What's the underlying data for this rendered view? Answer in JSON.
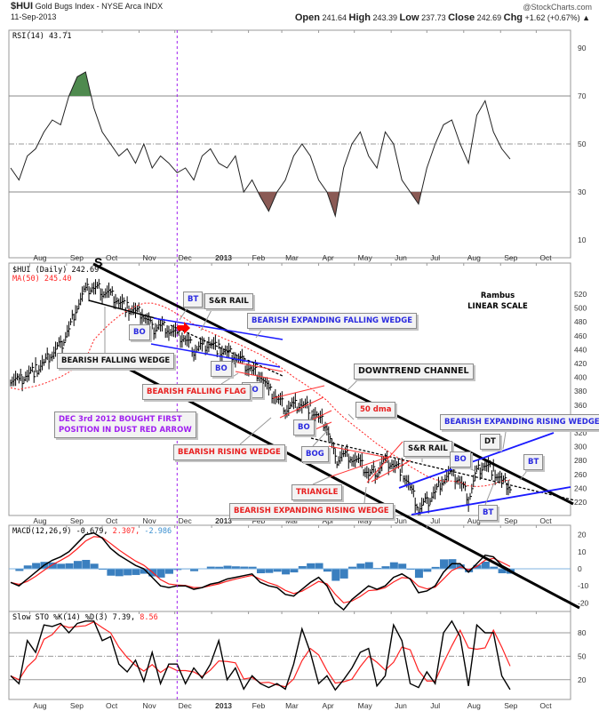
{
  "header": {
    "symbol": "$HUI",
    "name": "Gold Bugs Index - NYSE Arca INDX",
    "date": "11-Sep-2013",
    "credit": "@StockCharts.com",
    "open_label": "Open",
    "open": "241.64",
    "high_label": "High",
    "high": "243.39",
    "low_label": "Low",
    "low": "237.73",
    "close_label": "Close",
    "close": "242.69",
    "chg_label": "Chg",
    "chg": "+1.62 (+0.67%) ▲"
  },
  "legends": {
    "rsi": "RSI(14) 43.71",
    "price": "$HUI (Daily) 242.69",
    "ma": "MA(50) 245.40",
    "macd_name": "MACD(12,26,9) -0.679,",
    "macd_signal": " 2.307,",
    "macd_hist": " -2.986",
    "sto_name": "Slow STO %K(14) %D(3) 7.39,",
    "sto_d": " 8.56"
  },
  "annotations": {
    "s": "S",
    "rambus": "Rambus",
    "scale": "LINEAR SCALE",
    "bt1": "BT",
    "sr1": "S&R RAIL",
    "befw": "BEARISH EXPANDING FALLING WEDGE",
    "bo1": "BO",
    "bfw": "BEARISH FALLING WEDGE",
    "bo2": "BO",
    "bo3": "BO",
    "bff": "BEARISH FALLING FLAG",
    "dtc": "DOWNTREND CHANNEL",
    "dec1": "DEC 3rd 2012 BOUGHT FIRST",
    "dec2": "POSITION IN DUST RED ARROW",
    "bo4": "BO",
    "dma": "50 dma",
    "berw1": "BEARISH EXPANDING RISING WEDGE",
    "brw": "BEARISH RISING WEDGE",
    "bog": "BOG",
    "sr2": "S&R RAIL",
    "dt": "DT",
    "bo5": "BO",
    "bt2": "BT",
    "tri": "TRIANGLE",
    "bt3": "BT",
    "berw2": "BEARISH EXPANDING RISING WEDGE"
  },
  "colors": {
    "price": "#000000",
    "ma": "#ff2020",
    "macd_hist": "#3a7fbf",
    "signal": "#ff2020",
    "rsi_over": "#4f8a4f",
    "rsi_under": "#8a5a55",
    "marker": "#a020f0"
  },
  "chart_data": [
    {
      "type": "line",
      "panel": "RSI",
      "yticks": [
        90,
        70,
        50,
        30,
        10
      ],
      "ylim": [
        0,
        100
      ],
      "values": [
        40,
        35,
        45,
        48,
        55,
        60,
        58,
        70,
        78,
        80,
        65,
        55,
        50,
        45,
        48,
        42,
        50,
        40,
        45,
        42,
        38,
        40,
        35,
        45,
        48,
        42,
        40,
        45,
        30,
        35,
        28,
        22,
        30,
        35,
        45,
        50,
        45,
        35,
        30,
        20,
        40,
        50,
        55,
        45,
        40,
        55,
        50,
        35,
        30,
        25,
        40,
        50,
        58,
        60,
        50,
        42,
        62,
        68,
        55,
        48,
        43.71
      ]
    },
    {
      "type": "bar",
      "panel": "Price",
      "series_name": "$HUI (Daily)",
      "yticks": [
        520,
        500,
        480,
        460,
        440,
        420,
        400,
        380,
        360,
        340,
        320,
        300,
        280,
        260,
        240,
        220
      ],
      "dates": [
        "2012-07-16",
        "2012-07-23",
        "2012-07-30",
        "2012-08-06",
        "2012-08-13",
        "2012-08-20",
        "2012-08-27",
        "2012-09-03",
        "2012-09-10",
        "2012-09-17",
        "2012-09-24",
        "2012-10-01",
        "2012-10-08",
        "2012-10-15",
        "2012-10-22",
        "2012-10-29",
        "2012-11-05",
        "2012-11-12",
        "2012-11-19",
        "2012-11-26",
        "2012-12-03",
        "2012-12-10",
        "2012-12-17",
        "2012-12-24",
        "2012-12-31",
        "2013-01-07",
        "2013-01-14",
        "2013-01-21",
        "2013-01-28",
        "2013-02-04",
        "2013-02-11",
        "2013-02-18",
        "2013-02-25",
        "2013-03-04",
        "2013-03-11",
        "2013-03-18",
        "2013-03-25",
        "2013-04-01",
        "2013-04-08",
        "2013-04-15",
        "2013-04-22",
        "2013-04-29",
        "2013-05-06",
        "2013-05-13",
        "2013-05-20",
        "2013-05-27",
        "2013-06-03",
        "2013-06-10",
        "2013-06-17",
        "2013-06-24",
        "2013-07-01",
        "2013-07-08",
        "2013-07-15",
        "2013-07-22",
        "2013-07-29",
        "2013-08-05",
        "2013-08-12",
        "2013-08-19",
        "2013-08-26",
        "2013-09-02",
        "2013-09-09"
      ],
      "close": [
        400,
        395,
        405,
        410,
        420,
        435,
        445,
        470,
        505,
        525,
        530,
        525,
        520,
        510,
        500,
        495,
        490,
        470,
        475,
        470,
        460,
        455,
        440,
        445,
        450,
        440,
        435,
        430,
        420,
        410,
        405,
        380,
        370,
        355,
        360,
        362,
        355,
        340,
        330,
        280,
        290,
        285,
        275,
        260,
        265,
        280,
        275,
        265,
        240,
        210,
        220,
        235,
        255,
        260,
        250,
        225,
        265,
        275,
        265,
        250,
        242.69
      ]
    },
    {
      "type": "line",
      "panel": "MACD",
      "yticks": [
        20,
        10,
        0,
        -10,
        -20
      ],
      "macd": [
        -8,
        -10,
        -6,
        -2,
        2,
        5,
        7,
        10,
        15,
        20,
        21,
        18,
        12,
        8,
        5,
        2,
        0,
        -5,
        -10,
        -11,
        -10,
        -10,
        -12,
        -11,
        -9,
        -8,
        -6,
        -5,
        -4,
        -3,
        -8,
        -10,
        -11,
        -15,
        -16,
        -12,
        -8,
        -5,
        -10,
        -20,
        -24,
        -18,
        -14,
        -10,
        -12,
        -10,
        -5,
        -3,
        -6,
        -14,
        -13,
        -10,
        -2,
        3,
        3,
        -2,
        3,
        8,
        7,
        2,
        -0.679
      ]
    },
    {
      "type": "line",
      "panel": "Slow STO",
      "yticks": [
        80,
        50,
        20
      ],
      "ylim": [
        0,
        100
      ],
      "k": [
        25,
        15,
        70,
        55,
        90,
        88,
        92,
        80,
        92,
        95,
        95,
        70,
        75,
        40,
        30,
        45,
        18,
        55,
        15,
        40,
        40,
        15,
        35,
        22,
        40,
        70,
        20,
        35,
        8,
        25,
        15,
        10,
        15,
        8,
        40,
        85,
        55,
        15,
        25,
        7,
        20,
        35,
        55,
        60,
        12,
        25,
        90,
        70,
        15,
        10,
        30,
        15,
        80,
        95,
        75,
        12,
        90,
        80,
        80,
        25,
        7.39
      ]
    }
  ],
  "x_axis": {
    "months": [
      {
        "label": "Aug",
        "date": "2012-08-01"
      },
      {
        "label": "Sep",
        "date": "2012-09-01"
      },
      {
        "label": "Oct",
        "date": "2012-10-01"
      },
      {
        "label": "Nov",
        "date": "2012-11-01"
      },
      {
        "label": "Dec",
        "date": "2012-12-01"
      },
      {
        "label": "2013",
        "date": "2013-01-01"
      },
      {
        "label": "Feb",
        "date": "2013-02-01"
      },
      {
        "label": "Mar",
        "date": "2013-03-01"
      },
      {
        "label": "Apr",
        "date": "2013-04-01"
      },
      {
        "label": "May",
        "date": "2013-05-01"
      },
      {
        "label": "Jun",
        "date": "2013-06-01"
      },
      {
        "label": "Jul",
        "date": "2013-07-01"
      },
      {
        "label": "Aug",
        "date": "2013-08-01"
      },
      {
        "label": "Sep",
        "date": "2013-09-01"
      },
      {
        "label": "Oct",
        "date": "2013-10-01"
      }
    ],
    "marker_date": "2012-12-03"
  }
}
